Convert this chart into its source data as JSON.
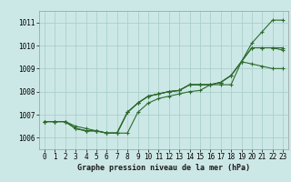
{
  "title": "Graphe pression niveau de la mer (hPa)",
  "xlim": [
    -0.5,
    23.5
  ],
  "ylim": [
    1005.5,
    1011.5
  ],
  "xticks": [
    0,
    1,
    2,
    3,
    4,
    5,
    6,
    7,
    8,
    9,
    10,
    11,
    12,
    13,
    14,
    15,
    16,
    17,
    18,
    19,
    20,
    21,
    22,
    23
  ],
  "yticks": [
    1006,
    1007,
    1008,
    1009,
    1010,
    1011
  ],
  "background_color": "#cce8e6",
  "grid_color": "#aacfcc",
  "line_color": "#2d6b2d",
  "series": [
    [
      1006.7,
      1006.7,
      1006.7,
      1006.4,
      1006.3,
      1006.3,
      1006.2,
      1006.2,
      1006.2,
      1007.1,
      1007.5,
      1007.7,
      1007.8,
      1007.9,
      1008.0,
      1008.05,
      1008.3,
      1008.3,
      1008.3,
      1009.3,
      1010.1,
      1010.6,
      1011.1,
      1011.1
    ],
    [
      1006.7,
      1006.7,
      1006.7,
      1006.4,
      1006.3,
      1006.3,
      1006.2,
      1006.2,
      1007.1,
      1007.5,
      1007.8,
      1007.9,
      1008.0,
      1008.05,
      1008.3,
      1008.3,
      1008.3,
      1008.4,
      1008.7,
      1009.3,
      1009.2,
      1009.1,
      1009.0,
      1009.0
    ],
    [
      1006.7,
      1006.7,
      1006.7,
      1006.4,
      1006.3,
      1006.3,
      1006.2,
      1006.2,
      1007.1,
      1007.5,
      1007.8,
      1007.9,
      1008.0,
      1008.05,
      1008.3,
      1008.3,
      1008.3,
      1008.4,
      1008.7,
      1009.3,
      1009.9,
      1009.9,
      1009.9,
      1009.8
    ],
    [
      1006.7,
      1006.7,
      1006.7,
      1006.5,
      1006.4,
      1006.3,
      1006.2,
      1006.2,
      1007.1,
      1007.5,
      1007.8,
      1007.9,
      1008.0,
      1008.05,
      1008.3,
      1008.3,
      1008.3,
      1008.4,
      1008.7,
      1009.3,
      1009.9,
      1009.9,
      1009.9,
      1009.9
    ]
  ],
  "title_fontsize": 6,
  "tick_fontsize": 5.5,
  "linewidth": 0.8,
  "markersize": 2.5
}
